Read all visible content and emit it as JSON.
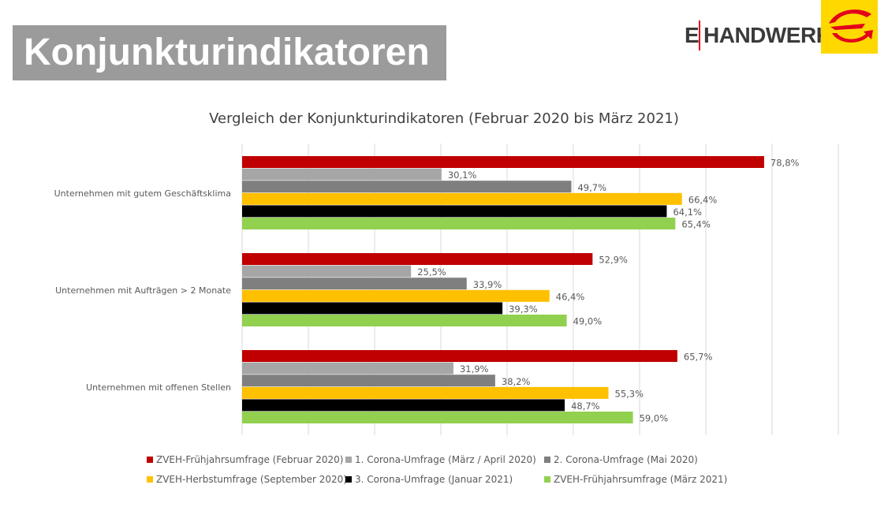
{
  "header": {
    "title": "Konjunkturindikatoren",
    "logo_text_left": "E",
    "logo_text_right": "HANDWERK",
    "logo_icon": "e-handwerk-swoosh-icon"
  },
  "colors": {
    "title_bg": "#9b9b9b",
    "logo_yellow": "#ffd800",
    "logo_red": "#e2001a"
  },
  "chart_data": {
    "type": "bar",
    "orientation": "horizontal",
    "title": "Vergleich der Konjunkturindikatoren (Februar 2020 bis März 2021)",
    "xlabel": "",
    "ylabel": "",
    "xlim": [
      0,
      90
    ],
    "grid": true,
    "legend_position": "bottom",
    "categories": [
      "Unternehmen mit gutem Geschäftsklima",
      "Unternehmen mit Aufträgen > 2 Monate",
      "Unternehmen mit offenen Stellen"
    ],
    "series": [
      {
        "name": "ZVEH-Frühjahrsumfrage (Februar 2020)",
        "color": "#c00000",
        "values": [
          78.8,
          52.9,
          65.7
        ],
        "labels": [
          "78,8%",
          "52,9%",
          "65,7%"
        ]
      },
      {
        "name": "1. Corona-Umfrage (März / April 2020)",
        "color": "#a6a6a6",
        "values": [
          30.1,
          25.5,
          31.9
        ],
        "labels": [
          "30,1%",
          "25,5%",
          "31,9%"
        ]
      },
      {
        "name": "2. Corona-Umfrage (Mai 2020)",
        "color": "#7f7f7f",
        "values": [
          49.7,
          33.9,
          38.2
        ],
        "labels": [
          "49,7%",
          "33,9%",
          "38,2%"
        ]
      },
      {
        "name": "ZVEH-Herbstumfrage (September 2020)",
        "color": "#ffc000",
        "values": [
          66.4,
          46.4,
          55.3
        ],
        "labels": [
          "66,4%",
          "46,4%",
          "55,3%"
        ]
      },
      {
        "name": "3. Corona-Umfrage (Januar 2021)",
        "color": "#000000",
        "values": [
          64.1,
          39.3,
          48.7
        ],
        "labels": [
          "64,1%",
          "39,3%",
          "48,7%"
        ]
      },
      {
        "name": "ZVEH-Frühjahrsumfrage (März 2021)",
        "color": "#92d050",
        "values": [
          65.4,
          49.0,
          59.0
        ],
        "labels": [
          "65,4%",
          "49,0%",
          "59,0%"
        ]
      }
    ]
  }
}
